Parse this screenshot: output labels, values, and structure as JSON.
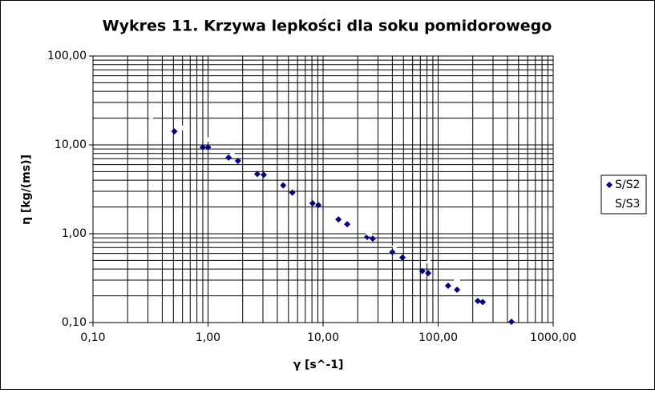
{
  "chart_data": {
    "type": "scatter",
    "title": "Wykres 11. Krzywa lepkości dla soku pomidorowego",
    "x_label": "γ [s^-1]",
    "y_label": "η [kg/(ms)]",
    "xscale": "log",
    "yscale": "log",
    "grid": true,
    "minor_grid": true,
    "legend": "right",
    "xlim": [
      0.1,
      1000
    ],
    "ylim": [
      0.1,
      100
    ],
    "xticks": [
      {
        "value": 0.1,
        "label": "0,10"
      },
      {
        "value": 1,
        "label": "1,00"
      },
      {
        "value": 10,
        "label": "10,00"
      },
      {
        "value": 100,
        "label": "100,00"
      },
      {
        "value": 1000,
        "label": "1000,00"
      }
    ],
    "yticks": [
      {
        "value": 0.1,
        "label": "0,10"
      },
      {
        "value": 1,
        "label": "1,00"
      },
      {
        "value": 10,
        "label": "10,00"
      },
      {
        "value": 100,
        "label": "100,00"
      }
    ],
    "series": [
      {
        "name": "S/S2",
        "color": "#000080",
        "x": [
          0.51,
          0.9,
          1.0,
          1.51,
          1.82,
          2.68,
          3.05,
          4.5,
          5.4,
          8.1,
          9.1,
          13.6,
          16.2,
          24.2,
          27,
          40,
          49,
          73,
          82,
          122,
          146,
          221,
          244,
          434
        ],
        "values": [
          14.2,
          9.4,
          9.4,
          7.2,
          6.6,
          4.7,
          4.6,
          3.5,
          2.9,
          2.2,
          2.1,
          1.45,
          1.28,
          0.92,
          0.88,
          0.62,
          0.54,
          0.38,
          0.36,
          0.26,
          0.234,
          0.175,
          0.17,
          0.102
        ]
      },
      {
        "name": "S/S3",
        "color": "#ffffff",
        "x": [
          0.32,
          0.59,
          0.98,
          1.63,
          25,
          42,
          83,
          146
        ],
        "values": [
          20.6,
          15.5,
          11.5,
          7.8,
          1.0,
          0.72,
          0.48,
          0.3
        ]
      }
    ]
  }
}
